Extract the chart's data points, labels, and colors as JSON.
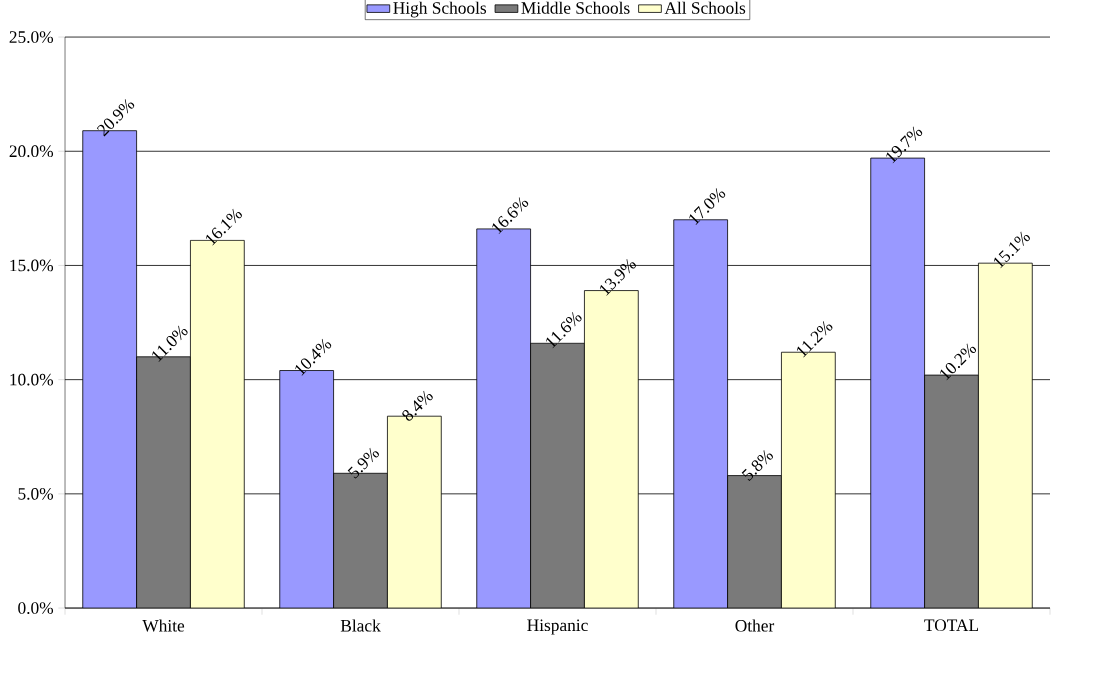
{
  "chart_data": {
    "type": "bar",
    "categories": [
      "White",
      "Black",
      "Hispanic",
      "Other",
      "TOTAL"
    ],
    "series": [
      {
        "name": "High Schools",
        "color": "#9999ff",
        "values": [
          20.9,
          10.4,
          16.6,
          17.0,
          19.7
        ],
        "value_labels": [
          "20.9%",
          "10.4%",
          "16.6%",
          "17.0%",
          "19.7%"
        ]
      },
      {
        "name": "Middle Schools",
        "color": "#7a7a7a",
        "values": [
          11.0,
          5.9,
          11.6,
          5.8,
          10.2
        ],
        "value_labels": [
          "11.0%",
          "5.9%",
          "11.6%",
          "5.8%",
          "10.2%"
        ]
      },
      {
        "name": "All Schools",
        "color": "#ffffcc",
        "values": [
          16.1,
          8.4,
          13.9,
          11.2,
          15.1
        ],
        "value_labels": [
          "16.1%",
          "8.4%",
          "13.9%",
          "11.2%",
          "15.1%"
        ]
      }
    ],
    "ylim": [
      0,
      25
    ],
    "yticks": [
      {
        "value": 0,
        "label": "0.0%"
      },
      {
        "value": 5,
        "label": "5.0%"
      },
      {
        "value": 10,
        "label": "10.0%"
      },
      {
        "value": 15,
        "label": "15.0%"
      },
      {
        "value": 20,
        "label": "20.0%"
      },
      {
        "value": 25,
        "label": "25.0%"
      }
    ],
    "grid": "y",
    "legend": "top"
  }
}
